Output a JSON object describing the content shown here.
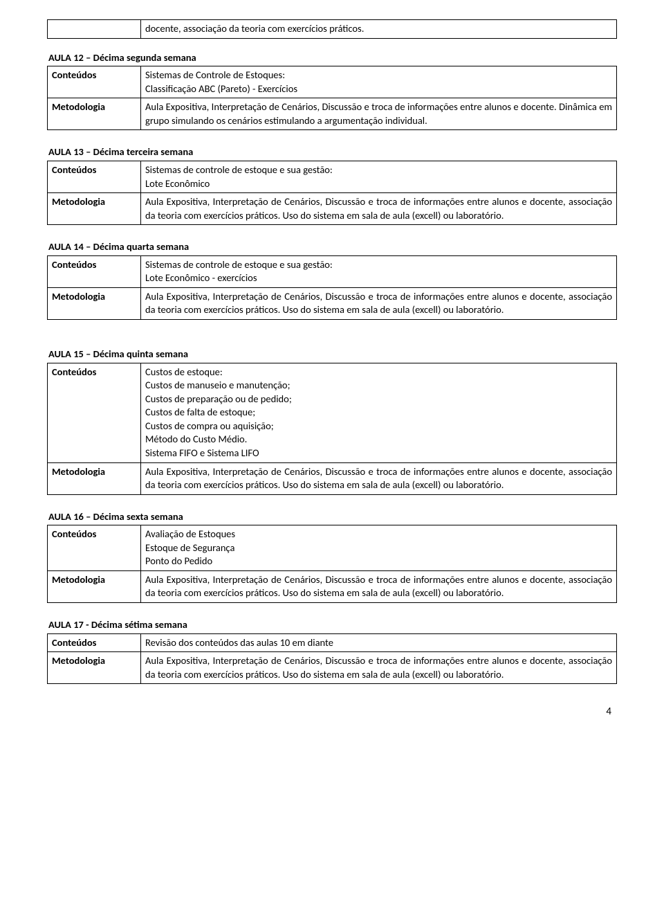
{
  "labels": {
    "conteudos": "Conteúdos",
    "metodologia": "Metodologia"
  },
  "top_orphan_cell": "docente, associação da teoria com exercícios práticos.",
  "aula12": {
    "title": "AULA 12 – Décima segunda semana",
    "conteudos": "Sistemas de Controle de Estoques:\nClassificação ABC (Pareto) - Exercícios",
    "metodologia": "Aula Expositiva, Interpretação de Cenários, Discussão e troca de informações entre alunos e docente. Dinâmica em grupo simulando os cenários estimulando a argumentação individual."
  },
  "aula13": {
    "title": "AULA 13 – Décima terceira semana",
    "conteudos": "Sistemas de controle de estoque e sua gestão:\nLote Econômico",
    "metodologia": "Aula Expositiva, Interpretação de Cenários, Discussão e troca de informações entre alunos e docente, associação da teoria com exercícios práticos. Uso do sistema em sala de aula (excell) ou laboratório."
  },
  "aula14": {
    "title": "AULA 14 – Décima quarta semana",
    "conteudos": "Sistemas de controle de estoque e sua gestão:\nLote Econômico  - exercícios",
    "metodologia": "Aula Expositiva, Interpretação de Cenários, Discussão e troca de informações entre alunos e docente, associação da teoria com exercícios práticos. Uso do sistema em sala de aula (excell) ou laboratório."
  },
  "aula15": {
    "title": "AULA 15 – Décima quinta semana",
    "conteudos": "Custos de estoque:\nCustos de manuseio e manutenção;\nCustos de preparação ou de pedido;\nCustos de falta de estoque;\nCustos de compra ou aquisição;\nMétodo do Custo Médio.\nSistema FIFO e Sistema LIFO",
    "metodologia": "Aula Expositiva, Interpretação de Cenários, Discussão e troca de informações entre alunos e docente, associação da teoria com exercícios práticos. Uso do sistema em sala de aula (excell) ou laboratório."
  },
  "aula16": {
    "title": "AULA 16 – Décima sexta semana",
    "conteudos": "Avaliação de Estoques\nEstoque de Segurança\nPonto do Pedido",
    "metodologia": "Aula Expositiva, Interpretação de Cenários, Discussão e troca de informações entre alunos e docente, associação da teoria com exercícios práticos. Uso do sistema em sala de aula (excell) ou laboratório."
  },
  "aula17": {
    "title": "AULA 17 - Décima sétima semana",
    "conteudos": "Revisão dos conteúdos das aulas 10 em diante",
    "metodologia": "Aula Expositiva, Interpretação de Cenários, Discussão e troca de informações entre alunos e docente, associação da teoria com exercícios práticos. Uso do sistema em sala de aula (excell) ou laboratório."
  },
  "page_number": "4"
}
